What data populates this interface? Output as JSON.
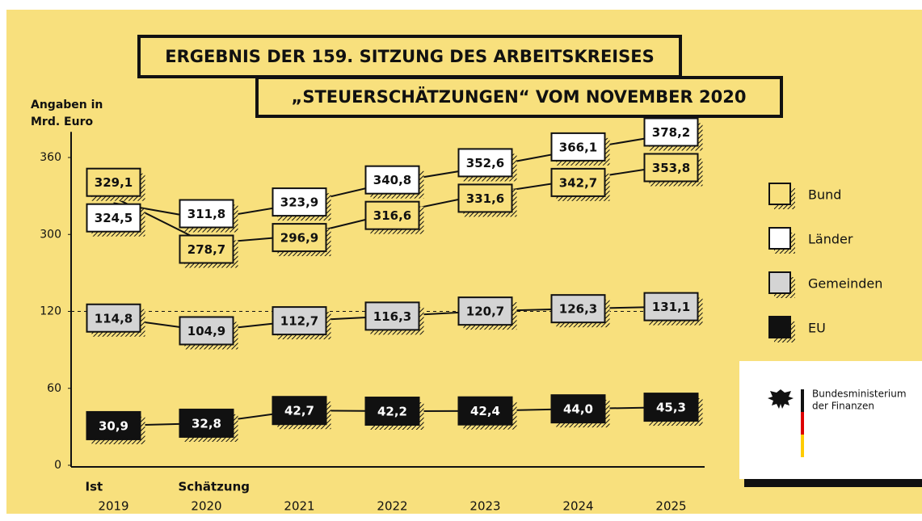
{
  "chart_data": {
    "type": "line",
    "title": [
      "ERGEBNIS DER 159. SITZUNG DES ARBEITSKREISES",
      "„STEUERSCHÄTZUNGEN“ VOM NOVEMBER 2020"
    ],
    "ylabel": [
      "Angaben in",
      "Mrd. Euro"
    ],
    "categories": [
      "2019",
      "2020",
      "2021",
      "2022",
      "2023",
      "2024",
      "2025"
    ],
    "category_groups": [
      "Ist",
      "Schätzung",
      null,
      null,
      null,
      null,
      null
    ],
    "ylim": [
      0,
      380
    ],
    "yticks": [
      0,
      60,
      120,
      300,
      360
    ],
    "break_line": 120,
    "series": [
      {
        "name": "Bund",
        "color": "#f8e07d",
        "text_color": "#111111",
        "values": [
          329.1,
          278.7,
          296.9,
          316.6,
          331.6,
          342.7,
          353.8
        ],
        "value_labels": [
          "329,1",
          "278,7",
          "296,9",
          "316,6",
          "331,6",
          "342,7",
          "353,8"
        ]
      },
      {
        "name": "Länder",
        "color": "#ffffff",
        "text_color": "#111111",
        "values": [
          324.5,
          311.8,
          323.9,
          340.8,
          352.6,
          366.1,
          378.2
        ],
        "value_labels": [
          "324,5",
          "311,8",
          "323,9",
          "340,8",
          "352,6",
          "366,1",
          "378,2"
        ]
      },
      {
        "name": "Gemeinden",
        "color": "#d4d4d4",
        "text_color": "#111111",
        "values": [
          114.8,
          104.9,
          112.7,
          116.3,
          120.7,
          126.3,
          131.1
        ],
        "value_labels": [
          "114,8",
          "104,9",
          "112,7",
          "116,3",
          "120,7",
          "126,3",
          "131,1"
        ]
      },
      {
        "name": "EU",
        "color": "#111111",
        "text_color": "#ffffff",
        "values": [
          30.9,
          32.8,
          42.7,
          42.2,
          42.4,
          44.0,
          45.3
        ],
        "value_labels": [
          "30,9",
          "32,8",
          "42,7",
          "42,2",
          "42,4",
          "44,0",
          "45,3"
        ]
      }
    ],
    "logo": [
      "Bundesministerium",
      "der Finanzen"
    ]
  }
}
